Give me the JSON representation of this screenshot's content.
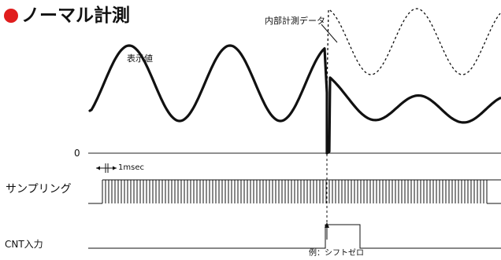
{
  "title": {
    "text": "ノーマル計測",
    "accent_color": "#e01d1d"
  },
  "labels": {
    "internal_data": "内部計測データ",
    "display_value": "表示値",
    "zero": "0",
    "interval": "1msec",
    "sampling": "サンプリング",
    "cnt_input": "CNT入力",
    "example": "例：シフトゼロ"
  }
}
